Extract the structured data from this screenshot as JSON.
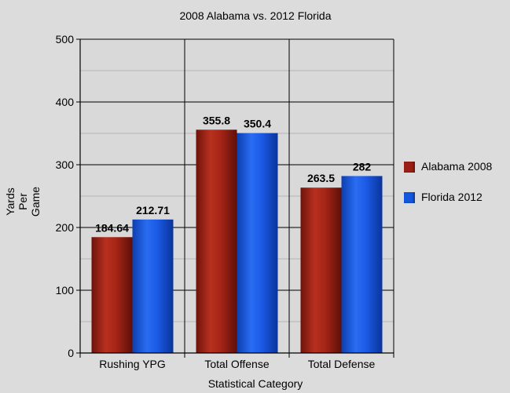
{
  "chart_data": {
    "type": "bar",
    "title": "2008 Alabama vs. 2012 Florida",
    "xlabel": "Statistical Category",
    "ylabel_lines": [
      "Yards",
      "Per",
      "Game"
    ],
    "categories": [
      "Rushing YPG",
      "Total Offense",
      "Total Defense"
    ],
    "series": [
      {
        "name": "Alabama 2008",
        "color": "#9b1f14",
        "values": [
          184.64,
          355.8,
          263.5
        ],
        "labels": [
          "184.64",
          "355.8",
          "263.5"
        ]
      },
      {
        "name": "Florida 2012",
        "color": "#1456dc",
        "values": [
          212.71,
          350.4,
          282
        ],
        "labels": [
          "212.71",
          "350.4",
          "282"
        ]
      }
    ],
    "ylim": [
      0,
      500
    ],
    "yticks": [
      "0",
      "100",
      "200",
      "300",
      "400",
      "500"
    ],
    "grid": true,
    "legend": "right"
  }
}
